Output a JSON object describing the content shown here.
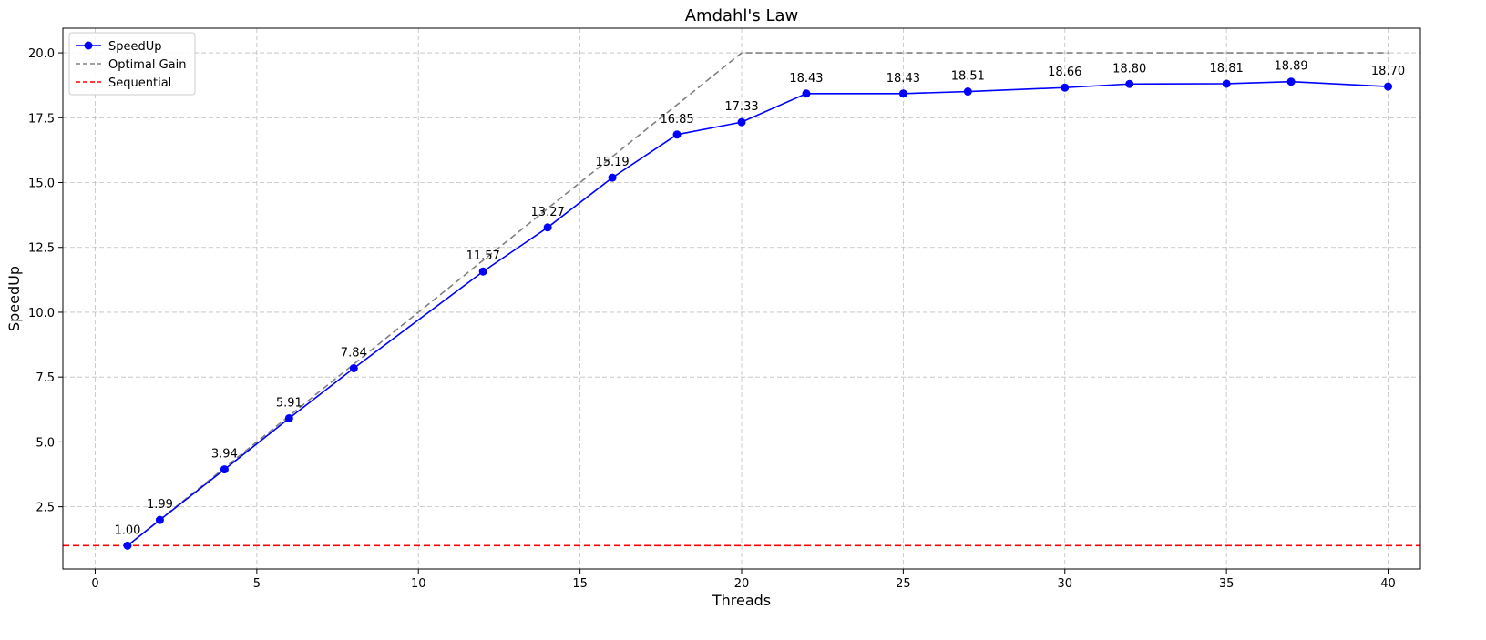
{
  "chart_data": {
    "type": "line",
    "title": "Amdahl's Law",
    "xlabel": "Threads",
    "ylabel": "SpeedUp",
    "xlim": [
      -1,
      41
    ],
    "ylim": [
      0.1,
      20.95
    ],
    "xticks": [
      0,
      5,
      10,
      15,
      20,
      25,
      30,
      35,
      40
    ],
    "yticks": [
      2.5,
      5.0,
      7.5,
      10.0,
      12.5,
      15.0,
      17.5,
      20.0
    ],
    "grid": true,
    "legend_position": "top-left",
    "series": [
      {
        "name": "SpeedUp",
        "style": "solid-with-markers",
        "color": "#0000ff",
        "x": [
          1,
          2,
          4,
          6,
          8,
          12,
          14,
          16,
          18,
          20,
          22,
          25,
          27,
          30,
          32,
          35,
          37,
          40
        ],
        "y": [
          1.0,
          1.99,
          3.94,
          5.91,
          7.84,
          11.57,
          13.27,
          15.19,
          16.85,
          17.33,
          18.43,
          18.43,
          18.51,
          18.66,
          18.8,
          18.81,
          18.89,
          18.7
        ],
        "labels": [
          "1.00",
          "1.99",
          "3.94",
          "5.91",
          "7.84",
          "11.57",
          "13.27",
          "15.19",
          "16.85",
          "17.33",
          "18.43",
          "18.43",
          "18.51",
          "18.66",
          "18.80",
          "18.81",
          "18.89",
          "18.70"
        ]
      },
      {
        "name": "Optimal Gain",
        "style": "dashed",
        "color": "#808080",
        "x": [
          1,
          20,
          40
        ],
        "y": [
          1,
          20,
          20
        ]
      },
      {
        "name": "Sequential",
        "style": "dashed-horizontal",
        "color": "#ff0000",
        "y_value": 1
      }
    ]
  }
}
